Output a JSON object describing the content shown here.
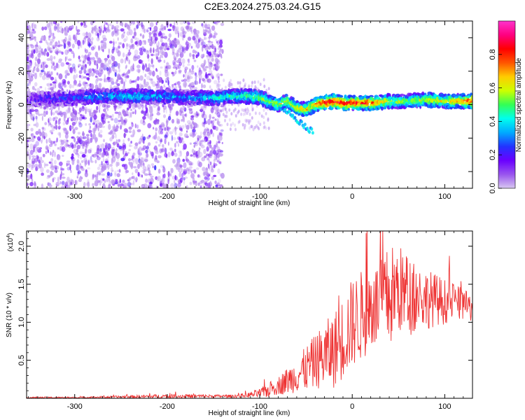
{
  "figure_title": "C2E3.2024.275.03.24.G15",
  "colors": {
    "snr_line": "#ee3333",
    "axis": "#000000",
    "colormap": [
      "#d8c8f0",
      "#9955ee",
      "#6a00ff",
      "#2233ff",
      "#00aaff",
      "#00ffee",
      "#33ff55",
      "#ccff00",
      "#ffcc00",
      "#ff5500",
      "#ff0000",
      "#ff0080",
      "#ff33cc"
    ]
  },
  "chart_data": [
    {
      "type": "heatmap",
      "title": "",
      "xlabel": "Height of straight line (km)",
      "ylabel": "Frequency (Hz)",
      "xlim": [
        -352,
        130
      ],
      "ylim": [
        -50,
        50
      ],
      "xticks": [
        "-300",
        "-200",
        "-100",
        "0",
        "100"
      ],
      "xtick_values": [
        -300,
        -200,
        -100,
        0,
        100
      ],
      "yticks": [
        "-40",
        "-20",
        "0",
        "20",
        "40"
      ],
      "ytick_values": [
        -40,
        -20,
        0,
        20,
        40
      ],
      "colorbar": {
        "label": "Normalized spectral amplitude",
        "range": [
          0,
          1
        ],
        "ticks": [
          "0.0",
          "0.2",
          "0.4",
          "0.6",
          "0.8"
        ],
        "tick_values": [
          0,
          0.2,
          0.4,
          0.6,
          0.8
        ]
      },
      "ridge": {
        "x": [
          -352,
          -300,
          -270,
          -240,
          -200,
          -170,
          -150,
          -130,
          -110,
          -100,
          -90,
          -80,
          -70,
          -60,
          -50,
          -40,
          -30,
          -20,
          -10,
          0,
          20,
          40,
          60,
          80,
          100,
          120,
          130
        ],
        "frequency": [
          3,
          4,
          5,
          5,
          5,
          4,
          4,
          5,
          5,
          4,
          2,
          0,
          2,
          -2,
          -3,
          0,
          1,
          2,
          1,
          1,
          1,
          2,
          2,
          3,
          2,
          2,
          2
        ],
        "amplitude": [
          0.15,
          0.25,
          0.35,
          0.38,
          0.35,
          0.3,
          0.42,
          0.45,
          0.5,
          0.55,
          0.55,
          0.6,
          0.6,
          0.62,
          0.65,
          0.75,
          0.85,
          0.9,
          0.9,
          0.85,
          0.8,
          0.6,
          0.55,
          0.6,
          0.65,
          0.7,
          0.9
        ]
      },
      "noise_region_x": [
        -352,
        -140
      ]
    },
    {
      "type": "line",
      "title": "",
      "xlabel": "Height of straight line (km)",
      "ylabel": "SNR (10 * v/v)",
      "y_multiplier": "(x10",
      "y_multiplier_exp": "4",
      "y_multiplier_close": ")",
      "xlim": [
        -352,
        130
      ],
      "ylim": [
        0,
        2.2
      ],
      "xticks": [
        "-300",
        "-200",
        "-100",
        "0",
        "100"
      ],
      "xtick_values": [
        -300,
        -200,
        -100,
        0,
        100
      ],
      "yticks": [
        "0.5",
        "1.0",
        "1.5",
        "2.0"
      ],
      "ytick_values": [
        0.5,
        1.0,
        1.5,
        2.0
      ],
      "series": [
        {
          "x": [
            -352,
            -300,
            -250,
            -200,
            -170,
            -150,
            -130,
            -115,
            -100,
            -90,
            -80,
            -70,
            -60,
            -50,
            -40,
            -30,
            -20,
            -10,
            0,
            10,
            20,
            30,
            40,
            50,
            60,
            70,
            80,
            90,
            100,
            110,
            120,
            130
          ],
          "envelope": [
            0.01,
            0.01,
            0.02,
            0.03,
            0.03,
            0.03,
            0.03,
            0.04,
            0.07,
            0.12,
            0.18,
            0.25,
            0.32,
            0.42,
            0.52,
            0.6,
            0.68,
            0.85,
            1.05,
            1.15,
            1.25,
            1.3,
            1.4,
            1.5,
            1.4,
            1.38,
            1.35,
            1.33,
            1.3,
            1.3,
            1.25,
            1.2
          ],
          "spread": [
            0.01,
            0.01,
            0.015,
            0.03,
            0.025,
            0.02,
            0.02,
            0.03,
            0.06,
            0.1,
            0.12,
            0.18,
            0.22,
            0.3,
            0.35,
            0.45,
            0.5,
            0.55,
            0.6,
            0.6,
            0.6,
            0.55,
            0.7,
            0.6,
            0.55,
            0.45,
            0.4,
            0.35,
            0.3,
            0.25,
            0.2,
            0.18
          ]
        }
      ]
    }
  ]
}
